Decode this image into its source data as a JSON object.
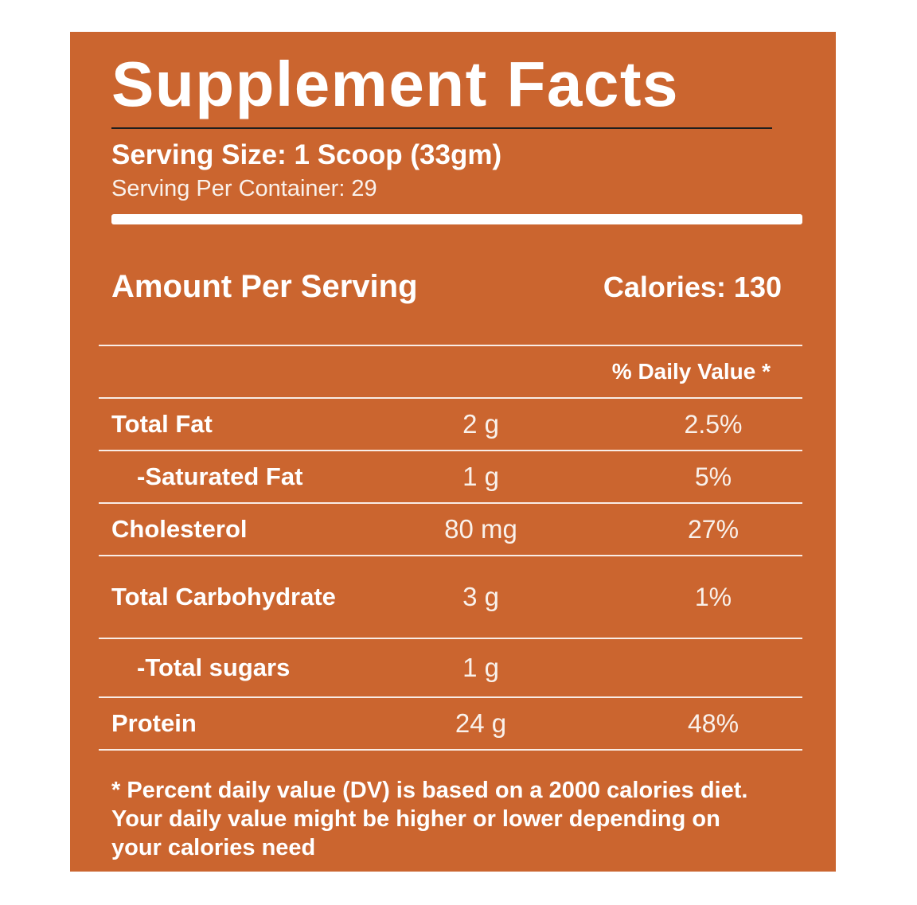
{
  "label": {
    "title": "Supplement Facts",
    "serving_size": "Serving Size: 1 Scoop (33gm)",
    "servings_per_container": "Serving Per Container: 29",
    "amount_per_serving": "Amount Per Serving",
    "calories": "Calories: 130",
    "daily_value_header": "% Daily Value *",
    "nutrients": [
      {
        "name": "Total Fat",
        "amount": "2 g",
        "daily_value": "2.5%"
      },
      {
        "name": "-Saturated Fat",
        "amount": "1 g",
        "daily_value": "5%"
      },
      {
        "name": "Cholesterol",
        "amount": "80 mg",
        "daily_value": "27%"
      },
      {
        "name": "Total Carbohydrate",
        "amount": "3 g",
        "daily_value": "1%"
      },
      {
        "name": "-Total sugars",
        "amount": "1 g",
        "daily_value": ""
      },
      {
        "name": "Protein",
        "amount": "24 g",
        "daily_value": "48%"
      }
    ],
    "footnote_lines": [
      "* Percent daily value (DV) is based on a 2000 calories diet.",
      "Your daily value might be higher or lower depending on",
      "your calories need"
    ],
    "colors": {
      "background": "#CB652F",
      "text": "#FFFFFF",
      "muted_text": "#F9F1EB",
      "title_rule": "#1E1E1E"
    }
  }
}
